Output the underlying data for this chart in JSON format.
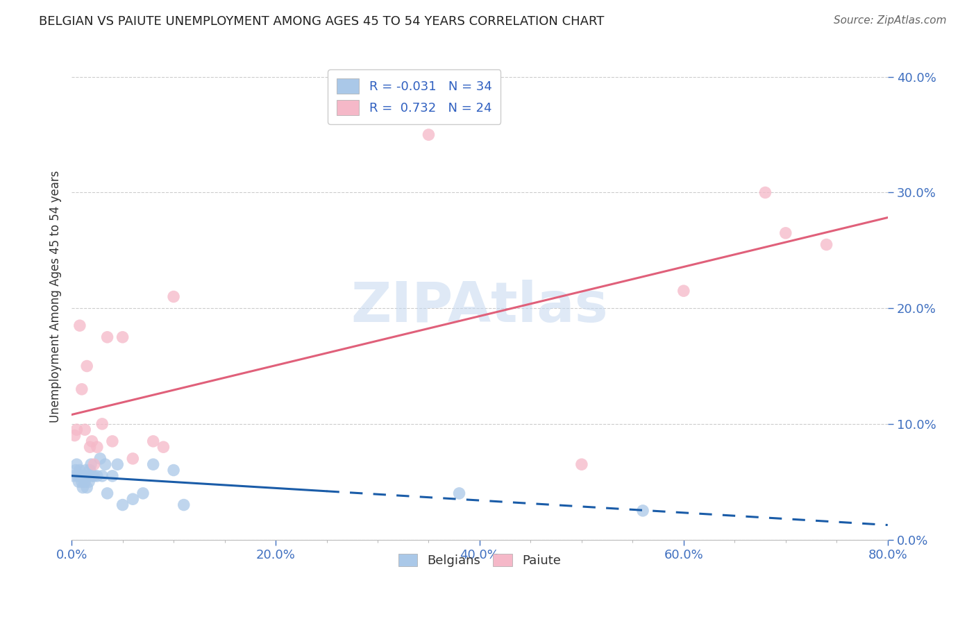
{
  "title": "BELGIAN VS PAIUTE UNEMPLOYMENT AMONG AGES 45 TO 54 YEARS CORRELATION CHART",
  "source": "Source: ZipAtlas.com",
  "ylabel": "Unemployment Among Ages 45 to 54 years",
  "xlim": [
    0.0,
    0.8
  ],
  "ylim": [
    0.0,
    0.42
  ],
  "yticks": [
    0.0,
    0.1,
    0.2,
    0.3,
    0.4
  ],
  "xticks": [
    0.0,
    0.2,
    0.4,
    0.6,
    0.8
  ],
  "belgian_r": -0.031,
  "belgian_n": 34,
  "paiute_r": 0.732,
  "paiute_n": 24,
  "belgian_color": "#aac8e8",
  "paiute_color": "#f5b8c8",
  "belgian_line_color": "#1a5ca8",
  "paiute_line_color": "#e0607a",
  "legend_label_belgian": "Belgians",
  "legend_label_paiute": "Paiute",
  "belgian_x": [
    0.002,
    0.004,
    0.005,
    0.006,
    0.007,
    0.008,
    0.009,
    0.01,
    0.011,
    0.012,
    0.013,
    0.014,
    0.015,
    0.016,
    0.017,
    0.018,
    0.019,
    0.02,
    0.022,
    0.025,
    0.028,
    0.03,
    0.033,
    0.035,
    0.04,
    0.045,
    0.05,
    0.06,
    0.07,
    0.08,
    0.1,
    0.11,
    0.38,
    0.56
  ],
  "belgian_y": [
    0.055,
    0.06,
    0.065,
    0.055,
    0.05,
    0.06,
    0.055,
    0.05,
    0.045,
    0.055,
    0.05,
    0.06,
    0.045,
    0.055,
    0.05,
    0.06,
    0.065,
    0.055,
    0.055,
    0.055,
    0.07,
    0.055,
    0.065,
    0.04,
    0.055,
    0.065,
    0.03,
    0.035,
    0.04,
    0.065,
    0.06,
    0.03,
    0.04,
    0.025
  ],
  "paiute_x": [
    0.003,
    0.005,
    0.008,
    0.01,
    0.013,
    0.015,
    0.018,
    0.02,
    0.022,
    0.025,
    0.03,
    0.035,
    0.04,
    0.05,
    0.06,
    0.08,
    0.09,
    0.1,
    0.35,
    0.5,
    0.6,
    0.68,
    0.7,
    0.74
  ],
  "paiute_y": [
    0.09,
    0.095,
    0.185,
    0.13,
    0.095,
    0.15,
    0.08,
    0.085,
    0.065,
    0.08,
    0.1,
    0.175,
    0.085,
    0.175,
    0.07,
    0.085,
    0.08,
    0.21,
    0.35,
    0.065,
    0.215,
    0.3,
    0.265,
    0.255
  ],
  "watermark": "ZIPAtlas",
  "title_color": "#222222",
  "axis_label_color": "#4070c0",
  "tick_color": "#4070c0",
  "background_color": "#ffffff",
  "grid_color": "#cccccc",
  "legend_text_color": "#3060c0"
}
